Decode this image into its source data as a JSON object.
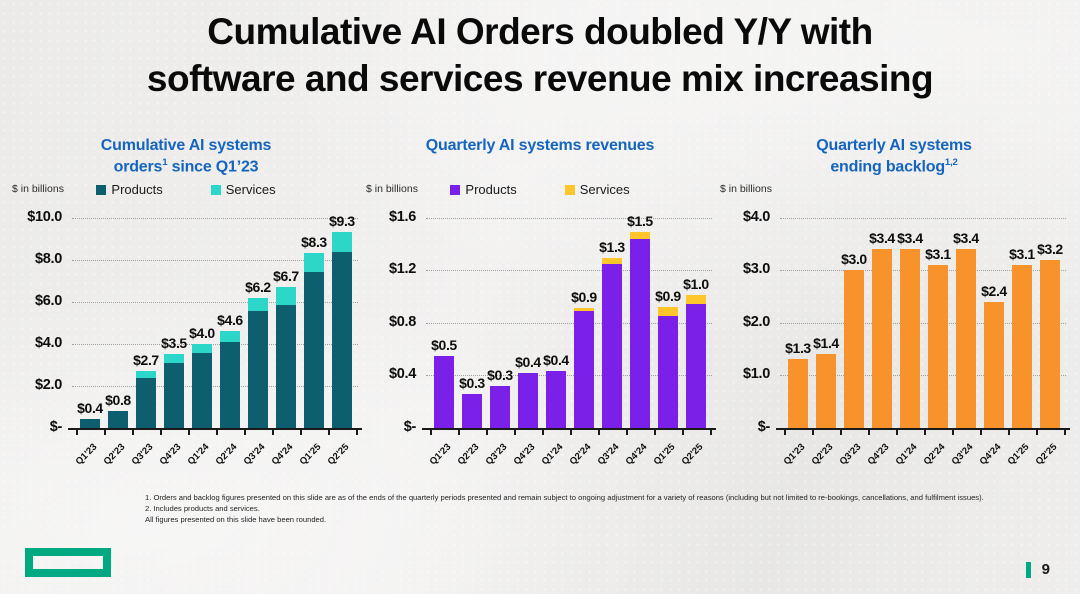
{
  "slide": {
    "title_line1": "Cumulative AI Orders doubled Y/Y with",
    "title_line2": "software and services revenue mix increasing",
    "page_number": "9",
    "footnotes": [
      "1.  Orders and backlog figures presented on this slide are as of the ends of the quarterly periods presented and remain subject to ongoing adjustment for a variety of reasons (including but not limited to re-bookings, cancellations, and fulfilment issues).",
      "2.  Includes products and services.",
      "All figures presented on this slide have been rounded."
    ]
  },
  "colors": {
    "chart_title_blue": "#1565BE",
    "products_teal": "#0D5E6E",
    "services_cyan": "#2CD6C8",
    "products_purple": "#7B20E8",
    "services_yellow": "#FFC62B",
    "backlog_orange": "#F8932B",
    "hpe_green": "#00A982",
    "grid_gray": "#A0A0A0",
    "axis_black": "#1A1A1A"
  },
  "chart_data": [
    {
      "type": "bar",
      "stacked": true,
      "show_legend": true,
      "title_line1": "Cumulative AI systems",
      "title_line2_pre": "orders",
      "title_line2_sup": "1",
      "title_line2_post": " since Q1’23",
      "units_label": "$ in billions",
      "categories": [
        "Q1'23",
        "Q2'23",
        "Q3'23",
        "Q4'23",
        "Q1'24",
        "Q2'24",
        "Q3'24",
        "Q4'24",
        "Q1'25",
        "Q2'25"
      ],
      "series": [
        {
          "name": "Products",
          "color": "#0D5E6E",
          "values": [
            0.4,
            0.8,
            2.35,
            3.1,
            3.55,
            4.1,
            5.55,
            5.85,
            7.4,
            8.35
          ]
        },
        {
          "name": "Services",
          "color": "#2CD6C8",
          "values": [
            0.0,
            0.0,
            0.35,
            0.4,
            0.45,
            0.5,
            0.65,
            0.85,
            0.9,
            0.95
          ]
        }
      ],
      "total_labels": [
        "$0.4",
        "$0.8",
        "$2.7",
        "$3.5",
        "$4.0",
        "$4.6",
        "$6.2",
        "$6.7",
        "$8.3",
        "$9.3"
      ],
      "ylim": [
        0,
        10
      ],
      "yticks": [
        {
          "value": 10,
          "label": "$10.0"
        },
        {
          "value": 8,
          "label": "$8.0"
        },
        {
          "value": 6,
          "label": "$6.0"
        },
        {
          "value": 4,
          "label": "$4.0"
        },
        {
          "value": 2,
          "label": "$2.0"
        },
        {
          "value": 0,
          "label": "$-"
        }
      ],
      "grid": "dotted",
      "legend_position": "top"
    },
    {
      "type": "bar",
      "stacked": true,
      "show_legend": true,
      "title_line1": "Quarterly AI systems revenues",
      "title_line2_pre": "",
      "title_line2_sup": "",
      "title_line2_post": "",
      "units_label": "$ in billions",
      "categories": [
        "Q1'23",
        "Q2'23",
        "Q3'23",
        "Q4'23",
        "Q1'24",
        "Q2'24",
        "Q3'24",
        "Q4'24",
        "Q1'25",
        "Q2'25"
      ],
      "series": [
        {
          "name": "Products",
          "color": "#7B20E8",
          "values": [
            0.55,
            0.26,
            0.32,
            0.42,
            0.43,
            0.89,
            1.25,
            1.44,
            0.85,
            0.94
          ]
        },
        {
          "name": "Services",
          "color": "#FFC62B",
          "values": [
            0.0,
            0.0,
            0.0,
            0.0,
            0.0,
            0.02,
            0.04,
            0.05,
            0.07,
            0.07
          ]
        }
      ],
      "total_labels": [
        "$0.5",
        "$0.3",
        "$0.3",
        "$0.4",
        "$0.4",
        "$0.9",
        "$1.3",
        "$1.5",
        "$0.9",
        "$1.0"
      ],
      "ylim": [
        0,
        1.6
      ],
      "yticks": [
        {
          "value": 1.6,
          "label": "$1.6"
        },
        {
          "value": 1.2,
          "label": "$1.2"
        },
        {
          "value": 0.8,
          "label": "$0.8"
        },
        {
          "value": 0.4,
          "label": "$0.4"
        },
        {
          "value": 0,
          "label": "$-"
        }
      ],
      "grid": "dotted",
      "legend_position": "top"
    },
    {
      "type": "bar",
      "stacked": false,
      "show_legend": false,
      "title_line1": "Quarterly AI systems",
      "title_line2_pre": "ending backlog",
      "title_line2_sup": "1,2",
      "title_line2_post": "",
      "units_label": "$ in billions",
      "categories": [
        "Q1'23",
        "Q2'23",
        "Q3'23",
        "Q4'23",
        "Q1'24",
        "Q2'24",
        "Q3'24",
        "Q4'24",
        "Q1'25",
        "Q2'25"
      ],
      "series": [
        {
          "color": "#F8932B",
          "values": [
            1.3,
            1.4,
            3.0,
            3.4,
            3.4,
            3.1,
            3.4,
            2.4,
            3.1,
            3.2
          ]
        }
      ],
      "total_labels": [
        "$1.3",
        "$1.4",
        "$3.0",
        "$3.4",
        "$3.4",
        "$3.1",
        "$3.4",
        "$2.4",
        "$3.1",
        "$3.2"
      ],
      "ylim": [
        0,
        4
      ],
      "yticks": [
        {
          "value": 4,
          "label": "$4.0"
        },
        {
          "value": 3,
          "label": "$3.0"
        },
        {
          "value": 2,
          "label": "$2.0"
        },
        {
          "value": 1,
          "label": "$1.0"
        },
        {
          "value": 0,
          "label": "$-"
        }
      ],
      "grid": "dotted",
      "legend_position": "none"
    }
  ]
}
